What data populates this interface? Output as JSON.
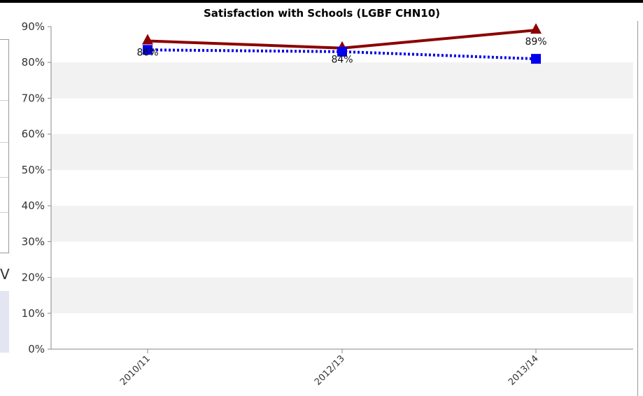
{
  "chart_data": {
    "type": "line",
    "title": "Satisfaction with Schools (LGBF CHN10)",
    "xlabel": "",
    "ylabel": "",
    "categories": [
      "2010/11",
      "2012/13",
      "2013/14"
    ],
    "ylim": [
      0,
      90
    ],
    "yticks": [
      0,
      10,
      20,
      30,
      40,
      50,
      60,
      70,
      80,
      90
    ],
    "ytick_labels": [
      "0%",
      "10%",
      "20%",
      "30%",
      "40%",
      "50%",
      "60%",
      "70%",
      "80%",
      "90%"
    ],
    "grid": "alternating horizontal bands",
    "series": [
      {
        "values": [
          86,
          84,
          89
        ],
        "color": "#8b0000",
        "marker": "triangle",
        "line_style": "solid",
        "data_labels": [
          "86%",
          "84%",
          "89%"
        ]
      },
      {
        "values": [
          83.5,
          83,
          81
        ],
        "color": "#0000ee",
        "marker": "square",
        "line_style": "dotted"
      }
    ]
  },
  "side_fragment": {
    "glyph": "V"
  }
}
